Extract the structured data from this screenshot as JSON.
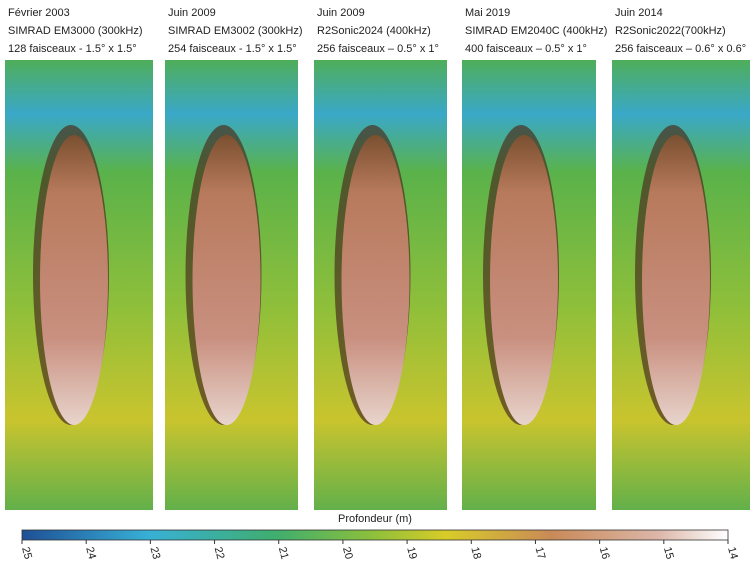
{
  "panels": [
    {
      "date": "Février 2003",
      "system": "SIMRAD EM3000 (300kHz)",
      "beams": "128 faisceaux - 1.5° x 1.5°"
    },
    {
      "date": "Juin 2009",
      "system": "SIMRAD EM3002 (300kHz)",
      "beams": "254 faisceaux - 1.5° x 1.5°"
    },
    {
      "date": "Juin 2009",
      "system": "R2Sonic2024 (400kHz)",
      "beams": "256 faisceaux – 0.5° x 1°"
    },
    {
      "date": "Mai 2019",
      "system": "SIMRAD EM2040C  (400kHz)",
      "beams": "400 faisceaux – 0.5° x 1°"
    },
    {
      "date": "Juin 2014",
      "system": "R2Sonic2022(700kHz)",
      "beams": "256 faisceaux – 0.6° x 0.6°"
    }
  ],
  "colorbar": {
    "label": "Profondeur (m)",
    "lim": [
      25,
      14
    ],
    "ticks": [
      25,
      24,
      23,
      22,
      21,
      20,
      19,
      18,
      17,
      16,
      15,
      14
    ]
  }
}
